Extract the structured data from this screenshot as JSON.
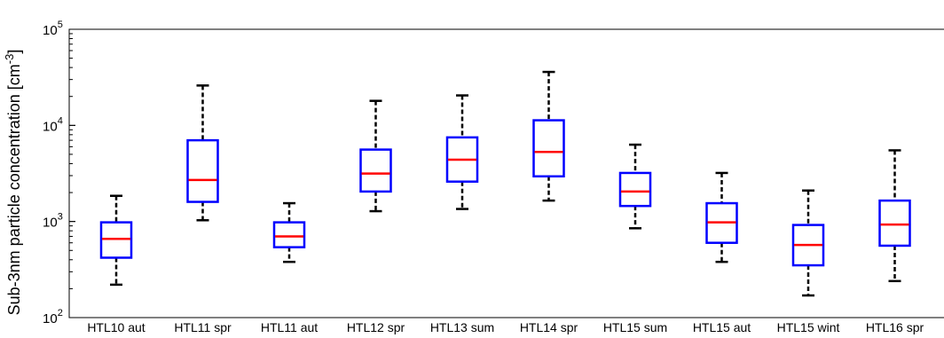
{
  "chart_data": {
    "type": "box",
    "ylabel": "Sub-3nm particle concentration [cm",
    "ylabel_sup": "-3",
    "ylabel_close": "]",
    "yscale": "log",
    "ylim": [
      100,
      100000
    ],
    "y_ticks": [
      {
        "value": 100,
        "base": "10",
        "exp": "2"
      },
      {
        "value": 1000,
        "base": "10",
        "exp": "3"
      },
      {
        "value": 10000,
        "base": "10",
        "exp": "4"
      },
      {
        "value": 100000,
        "base": "10",
        "exp": "5"
      }
    ],
    "categories": [
      "HTL10 aut",
      "HTL11 spr",
      "HTL11 aut",
      "HTL12 spr",
      "HTL13 sum",
      "HTL14 spr",
      "HTL15 sum",
      "HTL15 aut",
      "HTL15 wint",
      "HTL16 spr"
    ],
    "boxes": [
      {
        "whisker_low": 220,
        "q1": 420,
        "median": 660,
        "q3": 980,
        "whisker_high": 1850
      },
      {
        "whisker_low": 1030,
        "q1": 1600,
        "median": 2700,
        "q3": 7000,
        "whisker_high": 26000
      },
      {
        "whisker_low": 380,
        "q1": 540,
        "median": 700,
        "q3": 980,
        "whisker_high": 1550
      },
      {
        "whisker_low": 1280,
        "q1": 2050,
        "median": 3150,
        "q3": 5600,
        "whisker_high": 18000
      },
      {
        "whisker_low": 1350,
        "q1": 2600,
        "median": 4400,
        "q3": 7500,
        "whisker_high": 20500
      },
      {
        "whisker_low": 1650,
        "q1": 2950,
        "median": 5300,
        "q3": 11300,
        "whisker_high": 36000
      },
      {
        "whisker_low": 850,
        "q1": 1450,
        "median": 2050,
        "q3": 3200,
        "whisker_high": 6300
      },
      {
        "whisker_low": 380,
        "q1": 600,
        "median": 980,
        "q3": 1550,
        "whisker_high": 3200
      },
      {
        "whisker_low": 170,
        "q1": 350,
        "median": 570,
        "q3": 920,
        "whisker_high": 2100
      },
      {
        "whisker_low": 240,
        "q1": 560,
        "median": 930,
        "q3": 1650,
        "whisker_high": 5500
      }
    ],
    "colors": {
      "box": "#0000ff",
      "median": "#ff0000",
      "whisker": "#000000",
      "frame": "#000000"
    },
    "grid": false
  }
}
